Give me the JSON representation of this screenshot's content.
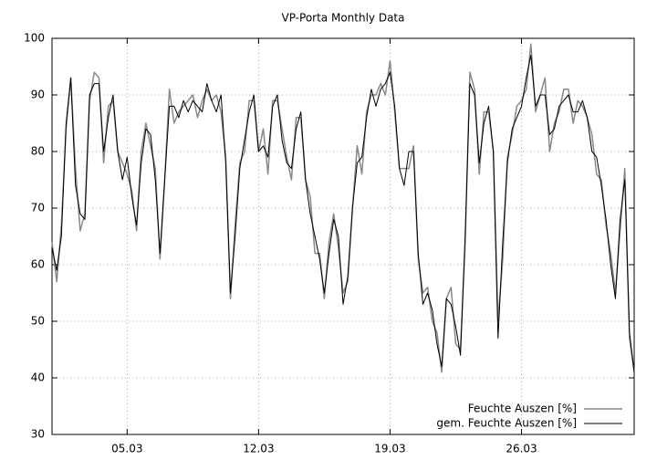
{
  "chart_data": {
    "type": "line",
    "title": "VP-Porta Monthly Data",
    "x": [
      1,
      1.25,
      1.5,
      1.75,
      2,
      2.25,
      2.5,
      2.75,
      3,
      3.25,
      3.5,
      3.75,
      4,
      4.25,
      4.5,
      4.75,
      5,
      5.25,
      5.5,
      5.75,
      6,
      6.25,
      6.5,
      6.75,
      7,
      7.25,
      7.5,
      7.75,
      8,
      8.25,
      8.5,
      8.75,
      9,
      9.25,
      9.5,
      9.75,
      10,
      10.25,
      10.5,
      10.75,
      11,
      11.25,
      11.5,
      11.75,
      12,
      12.25,
      12.5,
      12.75,
      13,
      13.25,
      13.5,
      13.75,
      14,
      14.25,
      14.5,
      14.75,
      15,
      15.25,
      15.5,
      15.75,
      16,
      16.25,
      16.5,
      16.75,
      17,
      17.25,
      17.5,
      17.75,
      18,
      18.25,
      18.5,
      18.75,
      19,
      19.25,
      19.5,
      19.75,
      20,
      20.25,
      20.5,
      20.75,
      21,
      21.25,
      21.5,
      21.75,
      22,
      22.25,
      22.5,
      22.75,
      23,
      23.25,
      23.5,
      23.75,
      24,
      24.25,
      24.5,
      24.75,
      25,
      25.25,
      25.5,
      25.75,
      26,
      26.25,
      26.5,
      26.75,
      27,
      27.25,
      27.5,
      27.75,
      28,
      28.25,
      28.5,
      28.75,
      29,
      29.25,
      29.5,
      29.75,
      30,
      30.25,
      30.5,
      30.75,
      31,
      31.25,
      31.5,
      31.75,
      32
    ],
    "series": [
      {
        "name": "Feuchte Auszen [%]",
        "color": "#888888",
        "values": [
          64,
          57,
          67,
          84,
          93,
          77,
          66,
          69,
          89,
          94,
          93,
          78,
          88,
          89,
          80,
          78,
          76,
          73,
          66,
          80,
          85,
          81,
          77,
          61,
          75,
          91,
          85,
          87,
          88,
          89,
          90,
          86,
          89,
          91,
          89,
          90,
          87,
          79,
          54,
          67,
          78,
          80,
          89,
          89,
          80,
          84,
          76,
          89,
          89,
          84,
          79,
          75,
          86,
          86,
          75,
          72,
          62,
          62,
          54,
          64,
          69,
          63,
          55,
          57,
          70,
          81,
          76,
          87,
          90,
          90,
          92,
          90,
          96,
          87,
          77,
          77,
          77,
          81,
          61,
          55,
          56,
          50,
          48,
          41,
          54,
          56,
          46,
          45,
          64,
          94,
          91,
          76,
          87,
          87,
          80,
          50,
          61,
          79,
          83,
          88,
          89,
          91,
          99,
          87,
          90,
          93,
          80,
          85,
          87,
          91,
          91,
          85,
          89,
          88,
          86,
          83,
          76,
          75,
          67,
          62,
          55,
          66,
          77,
          47,
          41
        ]
      },
      {
        "name": "gem. Feuchte Auszen [%]",
        "color": "#000000",
        "values": [
          63,
          59,
          65,
          85,
          93,
          74,
          69,
          68,
          90,
          92,
          92,
          80,
          86,
          90,
          80,
          75,
          79,
          72,
          67,
          78,
          84,
          83,
          75,
          62,
          75,
          88,
          88,
          86,
          89,
          87,
          89,
          88,
          87,
          92,
          89,
          87,
          90,
          78,
          55,
          65,
          77,
          82,
          87,
          90,
          80,
          81,
          79,
          88,
          90,
          82,
          78,
          77,
          84,
          87,
          75,
          69,
          65,
          61,
          55,
          62,
          68,
          65,
          53,
          58,
          70,
          78,
          79,
          86,
          91,
          88,
          91,
          92,
          94,
          88,
          77,
          74,
          80,
          80,
          62,
          53,
          55,
          52,
          46,
          42,
          54,
          53,
          49,
          44,
          65,
          92,
          90,
          78,
          85,
          88,
          80,
          47,
          64,
          78,
          84,
          86,
          88,
          93,
          97,
          88,
          90,
          90,
          83,
          84,
          88,
          89,
          90,
          87,
          87,
          89,
          86,
          80,
          79,
          74,
          68,
          60,
          54,
          68,
          75,
          48,
          41
        ]
      }
    ],
    "xlim": [
      1,
      32
    ],
    "ylim": [
      30,
      100
    ],
    "xticks": [
      {
        "value": 5,
        "label": "05.03"
      },
      {
        "value": 12,
        "label": "12.03"
      },
      {
        "value": 19,
        "label": "19.03"
      },
      {
        "value": 26,
        "label": "26.03"
      }
    ],
    "yticks": [
      30,
      40,
      50,
      60,
      70,
      80,
      90,
      100
    ],
    "grid": true,
    "legend": "bottom-right"
  }
}
